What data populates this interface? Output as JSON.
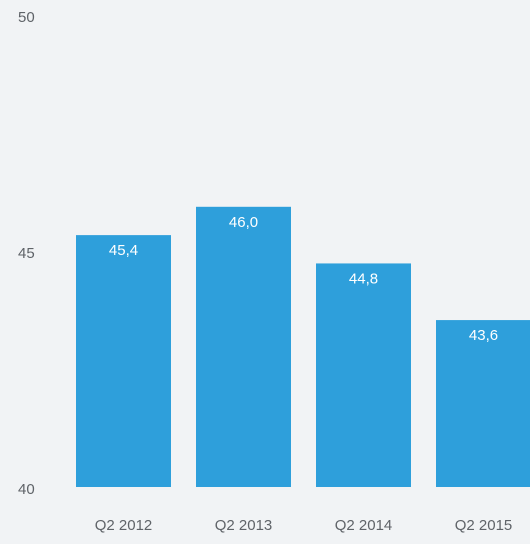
{
  "chart_data": {
    "type": "bar",
    "categories": [
      "Q2 2012",
      "Q2 2013",
      "Q2 2014",
      "Q2 2015"
    ],
    "values": [
      45.4,
      46.0,
      44.8,
      43.6
    ],
    "value_labels": [
      "45,4",
      "46,0",
      "44,8",
      "43,6"
    ],
    "color": "#2e9fdb",
    "ylim": [
      40,
      50
    ],
    "yticks": [
      40,
      45,
      50
    ],
    "grid": false
  }
}
